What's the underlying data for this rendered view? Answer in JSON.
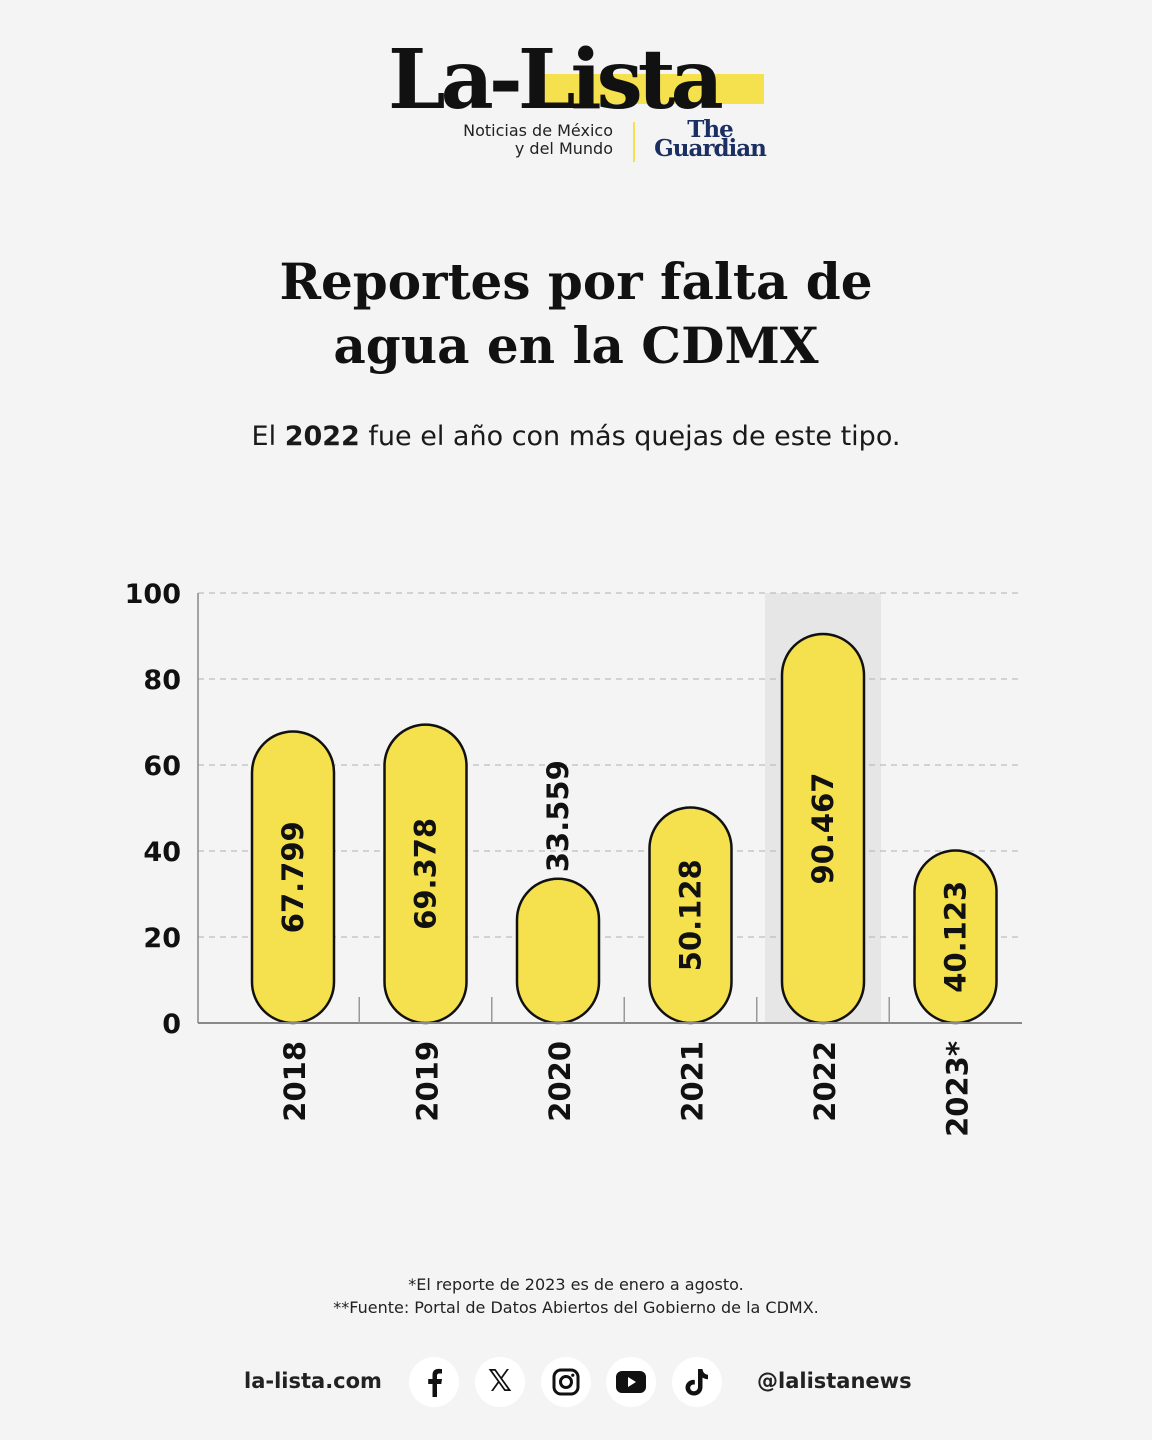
{
  "logo": {
    "wordmark": "La-Lista",
    "tagline_line1": "Noticias de México",
    "tagline_line2": "y del Mundo",
    "partner_line1": "The",
    "partner_line2": "Guardian"
  },
  "title_line1": "Reportes por falta de",
  "title_line2": "agua en la CDMX",
  "subtitle": {
    "prefix": "El ",
    "bold": "2022",
    "suffix": " fue el año con más quejas de este tipo."
  },
  "chart_data": {
    "type": "bar",
    "title": "Reportes por falta de agua en la CDMX",
    "xlabel": "",
    "ylabel": "",
    "categories": [
      "2018",
      "2019",
      "2020",
      "2021",
      "2022",
      "2023*"
    ],
    "values": [
      67.799,
      69.378,
      33.559,
      50.128,
      90.467,
      40.123
    ],
    "value_labels": [
      "67.799",
      "69.378",
      "33.559",
      "50.128",
      "90.467",
      "40.123"
    ],
    "yticks": [
      0,
      20,
      40,
      60,
      80,
      100
    ],
    "ylim": [
      0,
      100
    ],
    "grid": true,
    "highlight_category": "2022",
    "colors": {
      "bar": "#f5e04e",
      "highlight_band": "#e6e6e6",
      "outline": "#111111"
    }
  },
  "footnotes": {
    "note1": "*El reporte de 2023 es de enero a agosto.",
    "note2": "**Fuente: Portal de Datos Abiertos del Gobierno de la CDMX."
  },
  "footer": {
    "website": "la-lista.com",
    "handle": "@lalistanews",
    "social_icons": [
      "facebook-icon",
      "x-icon",
      "instagram-icon",
      "youtube-icon",
      "tiktok-icon"
    ],
    "x_glyph": "𝕏"
  }
}
